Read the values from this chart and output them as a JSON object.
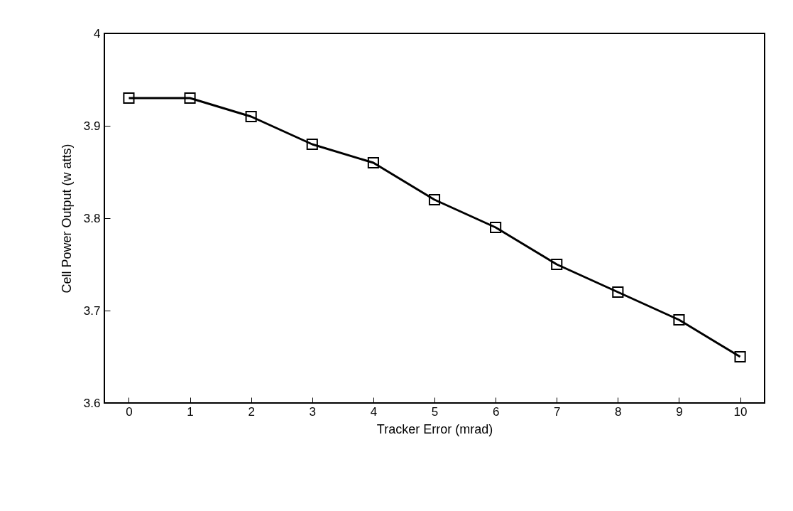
{
  "chart_data": {
    "type": "line",
    "xlabel": "Tracker Error (mrad)",
    "ylabel": "Cell Power Output (w atts)",
    "x": [
      0,
      1,
      2,
      3,
      4,
      5,
      6,
      7,
      8,
      9,
      10
    ],
    "series": [
      {
        "color": "#000000",
        "values": [
          3.93,
          3.93,
          3.91,
          3.88,
          3.86,
          3.82,
          3.79,
          3.75,
          3.72,
          3.69,
          3.65
        ]
      }
    ],
    "xlim": [
      -0.4,
      10.4
    ],
    "ylim": [
      3.6,
      4
    ],
    "xticks": [
      0,
      1,
      2,
      3,
      4,
      5,
      6,
      7,
      8,
      9,
      10
    ],
    "yticks": [
      3.6,
      3.7,
      3.8,
      3.9,
      4
    ],
    "grid": false,
    "legend": false,
    "marker": "square",
    "line_style": "solid"
  }
}
